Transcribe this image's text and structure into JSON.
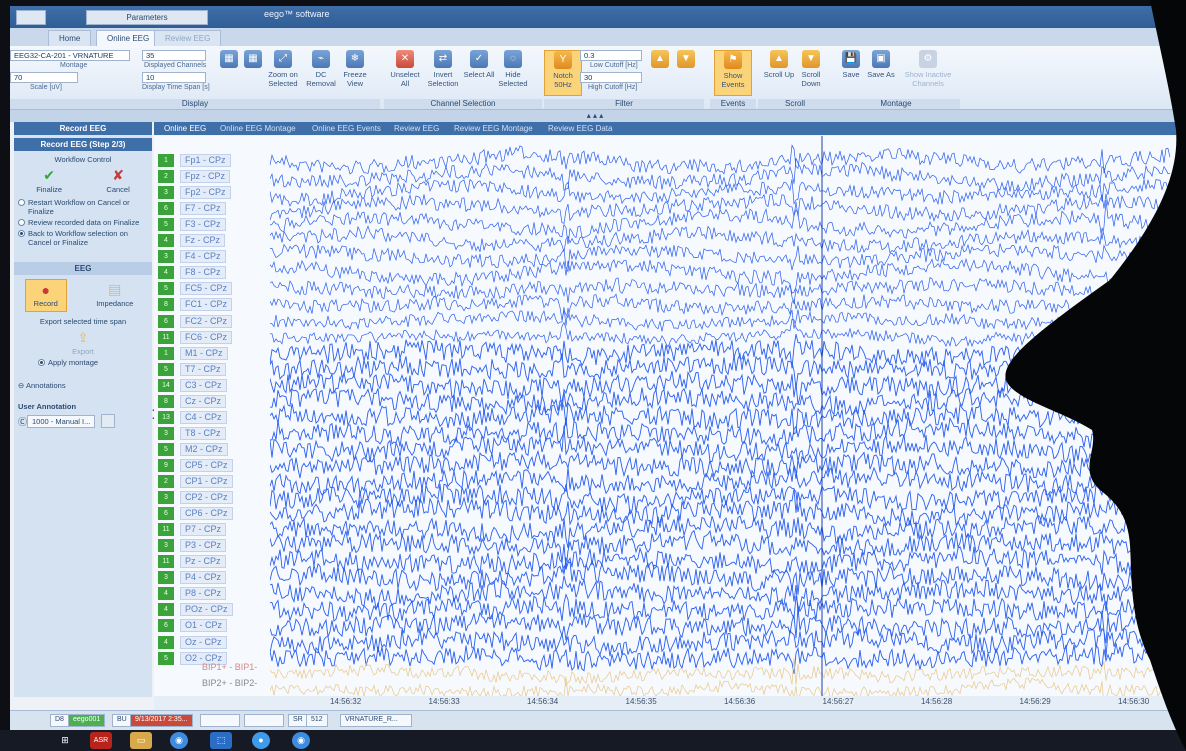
{
  "titlebar": {
    "buttons": [
      "Parameters"
    ],
    "title": "eego™ software"
  },
  "tabs": [
    {
      "label": "Home",
      "state": "normal"
    },
    {
      "label": "Online EEG",
      "state": "active"
    },
    {
      "label": "Review EEG",
      "state": "dim"
    }
  ],
  "ribbon": {
    "montage_combo": "EEG32-CA-201 - VRNATURE",
    "montage_label": "Montage",
    "scale_combo": "70",
    "scale_label": "Scale [uV]",
    "displayed_channels_combo": "35",
    "displayed_channels_label": "Displayed Channels",
    "time_span_combo": "10",
    "time_span_label": "Display Time Span [s]",
    "display_buttons": [
      {
        "label": "Zoom on Selected",
        "icon": "zoom-icon"
      },
      {
        "label": "DC Removal",
        "icon": "dc-icon"
      },
      {
        "label": "Freeze View",
        "icon": "freeze-icon"
      }
    ],
    "channel_buttons": [
      {
        "label": "Unselect All",
        "icon": "unselect-icon"
      },
      {
        "label": "Invert Selection",
        "icon": "invert-icon"
      },
      {
        "label": "Select All",
        "icon": "select-icon"
      },
      {
        "label": "Hide Selected",
        "icon": "hide-icon"
      }
    ],
    "notch_button": "Notch 50Hz",
    "low_cutoff_combo": "0.3",
    "low_cutoff_label": "Low Cutoff [Hz]",
    "high_cutoff_combo": "30",
    "high_cutoff_label": "High Cutoff [Hz]",
    "events_button": "Show Events",
    "scroll_buttons": [
      {
        "label": "Scroll Up",
        "icon": "scroll-up-icon"
      },
      {
        "label": "Scroll Down",
        "icon": "scroll-down-icon"
      }
    ],
    "montage_buttons": [
      {
        "label": "Save",
        "icon": "save-icon"
      },
      {
        "label": "Save As",
        "icon": "save-as-icon"
      },
      {
        "label": "Show Inactive Channels",
        "icon": "channels-icon"
      }
    ],
    "groups": [
      "Display",
      "Channel Selection",
      "Filter",
      "Events",
      "Scroll",
      "Montage"
    ]
  },
  "subtabs": [
    "Online EEG",
    "Online EEG Montage",
    "Online EEG Events",
    "Review EEG",
    "Review EEG Montage",
    "Review EEG Data"
  ],
  "sidebar": {
    "record_header": "Record EEG",
    "step": "Record EEG (Step 2/3)",
    "workflow_label": "Workflow Control",
    "finalize_label": "Finalize",
    "cancel_label": "Cancel",
    "options": [
      {
        "text": "Restart Workflow on Cancel or Finalize",
        "selected": false
      },
      {
        "text": "Review recorded data on Finalize",
        "selected": false
      },
      {
        "text": "Back to Workflow selection on Cancel or Finalize",
        "selected": true
      }
    ],
    "eeg_label": "EEG",
    "record_label": "Record",
    "impedance_label": "Impedance",
    "export_heading": "Export selected time span",
    "export_label": "Export",
    "apply_montage": "Apply montage",
    "annotations_label": "Annotations",
    "user_annotation": "User Annotation",
    "annotation_item": "1000 - Manual I..."
  },
  "channels": [
    {
      "num": "1",
      "label": "Fp1 - CPz"
    },
    {
      "num": "2",
      "label": "Fpz - CPz"
    },
    {
      "num": "3",
      "label": "Fp2 - CPz"
    },
    {
      "num": "6",
      "label": "F7 - CPz"
    },
    {
      "num": "5",
      "label": "F3 - CPz"
    },
    {
      "num": "4",
      "label": "Fz - CPz"
    },
    {
      "num": "3",
      "label": "F4 - CPz"
    },
    {
      "num": "4",
      "label": "F8 - CPz"
    },
    {
      "num": "5",
      "label": "FC5 - CPz"
    },
    {
      "num": "8",
      "label": "FC1 - CPz"
    },
    {
      "num": "6",
      "label": "FC2 - CPz"
    },
    {
      "num": "11",
      "label": "FC6 - CPz"
    },
    {
      "num": "1",
      "label": "M1 - CPz"
    },
    {
      "num": "5",
      "label": "T7 - CPz"
    },
    {
      "num": "14",
      "label": "C3 - CPz"
    },
    {
      "num": "8",
      "label": "Cz - CPz"
    },
    {
      "num": "13",
      "label": "C4 - CPz"
    },
    {
      "num": "3",
      "label": "T8 - CPz"
    },
    {
      "num": "5",
      "label": "M2 - CPz"
    },
    {
      "num": "9",
      "label": "CP5 - CPz"
    },
    {
      "num": "2",
      "label": "CP1 - CPz"
    },
    {
      "num": "3",
      "label": "CP2 - CPz"
    },
    {
      "num": "6",
      "label": "CP6 - CPz"
    },
    {
      "num": "11",
      "label": "P7 - CPz"
    },
    {
      "num": "3",
      "label": "P3 - CPz"
    },
    {
      "num": "11",
      "label": "Pz - CPz"
    },
    {
      "num": "3",
      "label": "P4 - CPz"
    },
    {
      "num": "4",
      "label": "P8 - CPz"
    },
    {
      "num": "4",
      "label": "POz - CPz"
    },
    {
      "num": "6",
      "label": "O1 - CPz"
    },
    {
      "num": "4",
      "label": "Oz - CPz"
    },
    {
      "num": "5",
      "label": "O2 - CPz"
    }
  ],
  "bipolar": [
    "BIP1+ - BIP1-",
    "BIP2+ - BIP2-"
  ],
  "time_labels": [
    "14:56:32",
    "14:56:33",
    "14:56:34",
    "14:56:35",
    "14:56:36",
    "14:56:27",
    "14:56:28",
    "14:56:29",
    "14:56:30"
  ],
  "statusbar": [
    "D8",
    "eego001",
    "BU",
    "9/13/2017 2:35...",
    "SR",
    "512",
    "VRNATURE_R..."
  ],
  "colors": {
    "trace": "#2a5ff0",
    "accent": "#3f6fa8",
    "channel_badge": "#3aa33a"
  }
}
